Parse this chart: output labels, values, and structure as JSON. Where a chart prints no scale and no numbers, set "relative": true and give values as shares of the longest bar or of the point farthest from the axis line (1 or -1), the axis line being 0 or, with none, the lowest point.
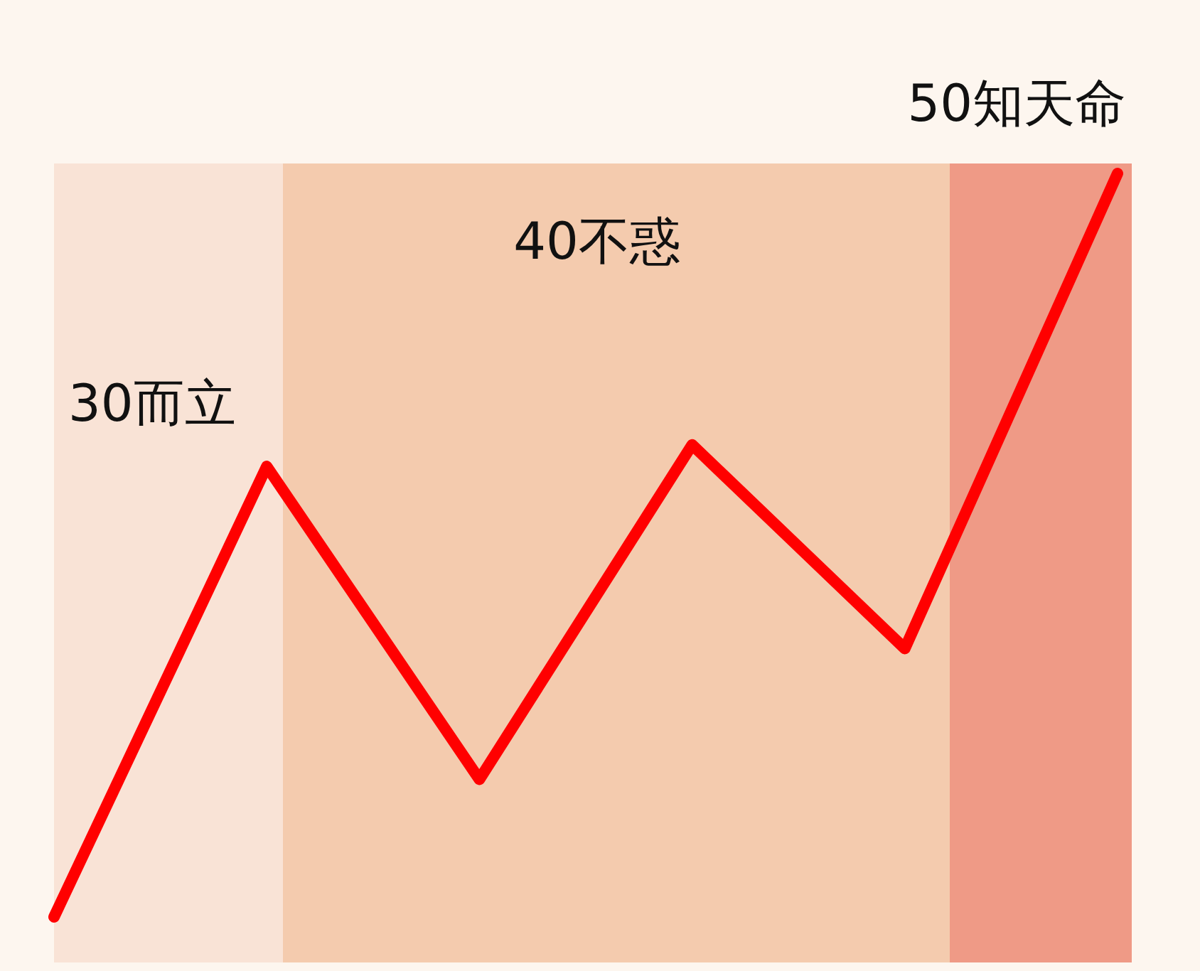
{
  "chart_data": {
    "type": "line",
    "relative": true,
    "marker": "none",
    "line_style": "solid",
    "categories": [
      null,
      null,
      null,
      null,
      null,
      null
    ],
    "series": [
      {
        "color": "#ff0000",
        "values": [
          0,
          0.606,
          0.185,
          0.635,
          0.361,
          1
        ]
      }
    ],
    "annotations": [
      "30而立",
      "40不惑",
      "50知天命"
    ]
  }
}
